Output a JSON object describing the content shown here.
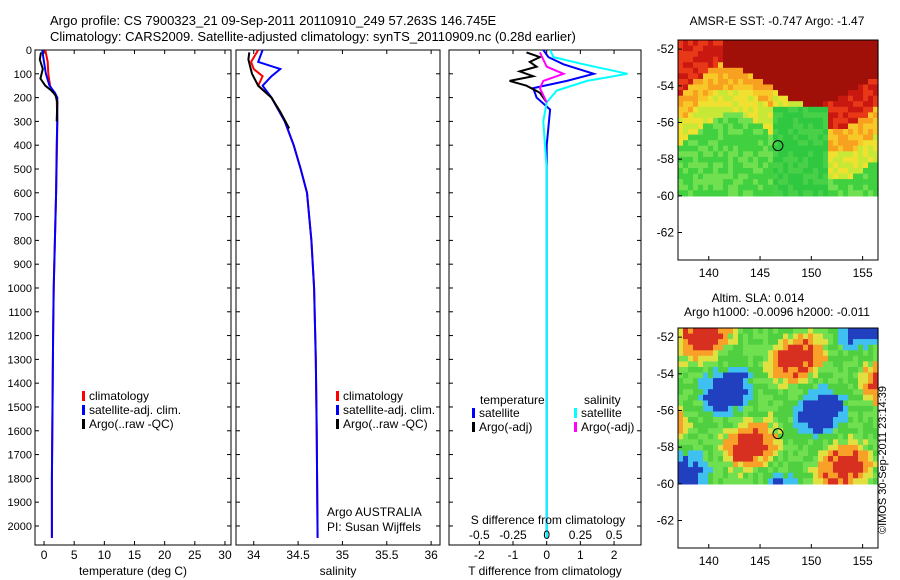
{
  "header": {
    "line1": "Argo profile: CS 7900323_21 09-Sep-2011 20110910_249 57.263S 146.745E",
    "line2": "Climatology: CARS2009. Satellite-adjusted climatology: synTS_20110909.nc (0.28d earlier)"
  },
  "colors": {
    "climatology": "#ff0000",
    "satellite": "#0000ff",
    "argo": "#000000",
    "satellite_s": "#00ffff",
    "argo_s": "#ff00ff"
  },
  "chart_data": [
    {
      "type": "line",
      "id": "temperature",
      "xlabel": "temperature (deg C)",
      "ylabel": "",
      "xlim": [
        -1.5,
        31
      ],
      "ylim": [
        2080,
        0
      ],
      "xticks": [
        0,
        5,
        10,
        15,
        20,
        25,
        30
      ],
      "yticks": [
        0,
        100,
        200,
        300,
        400,
        500,
        600,
        700,
        800,
        900,
        1000,
        1100,
        1200,
        1300,
        1400,
        1500,
        1600,
        1700,
        1800,
        1900,
        2000
      ],
      "legend": [
        "climatology",
        "satellite-adj. clim.",
        "Argo(..raw -QC)"
      ],
      "series": [
        {
          "name": "climatology",
          "x": [
            0.2,
            0.6,
            0.7,
            1.0,
            1.6,
            2.1,
            2.2,
            2.15,
            2.0,
            1.8,
            1.6,
            1.5,
            1.4,
            1.3,
            1.3
          ],
          "depth": [
            0,
            50,
            100,
            150,
            180,
            200,
            300,
            400,
            600,
            800,
            1000,
            1200,
            1500,
            1800,
            2050
          ]
        },
        {
          "name": "satellite-adj. clim.",
          "x": [
            -0.3,
            0.0,
            0.3,
            0.9,
            1.8,
            2.2,
            2.2,
            2.1,
            2.0,
            1.8,
            1.6,
            1.5,
            1.4,
            1.3,
            1.3
          ],
          "depth": [
            0,
            50,
            100,
            150,
            180,
            200,
            300,
            400,
            600,
            800,
            1000,
            1200,
            1500,
            1800,
            2050
          ]
        },
        {
          "name": "Argo(..raw -QC)",
          "x": [
            -0.5,
            -0.7,
            -0.2,
            -0.6,
            0.2,
            1.2,
            1.9,
            2.2,
            2.1
          ],
          "depth": [
            10,
            40,
            80,
            120,
            150,
            170,
            190,
            220,
            300
          ]
        }
      ]
    },
    {
      "type": "line",
      "id": "salinity",
      "xlabel": "salinity",
      "xlim": [
        33.8,
        36.1
      ],
      "ylim": [
        2080,
        0
      ],
      "xticks": [
        34,
        34.5,
        35,
        35.5,
        36
      ],
      "legend": [
        "climatology",
        "satellite-adj. clim.",
        "Argo(..raw -QC)"
      ],
      "series": [
        {
          "name": "climatology",
          "x": [
            34.05,
            33.97,
            34.0,
            34.1,
            34.05,
            34.2,
            34.35,
            34.45,
            34.53,
            34.6,
            34.65,
            34.68,
            34.7,
            34.71,
            34.72
          ],
          "depth": [
            0,
            50,
            80,
            110,
            150,
            200,
            300,
            400,
            500,
            600,
            800,
            1000,
            1300,
            1600,
            2050
          ]
        },
        {
          "name": "satellite-adj. clim.",
          "x": [
            34.1,
            34.05,
            34.3,
            34.2,
            34.1,
            34.2,
            34.35,
            34.45,
            34.53,
            34.6,
            34.65,
            34.68,
            34.7,
            34.71,
            34.72
          ],
          "depth": [
            0,
            50,
            80,
            110,
            150,
            200,
            300,
            400,
            500,
            600,
            800,
            1000,
            1300,
            1600,
            2050
          ]
        },
        {
          "name": "Argo(..raw -QC)",
          "x": [
            33.95,
            33.94,
            33.96,
            33.98,
            34.05,
            34.2,
            34.3,
            34.4
          ],
          "depth": [
            10,
            40,
            70,
            100,
            150,
            200,
            260,
            330
          ]
        }
      ],
      "annotations": [
        "Argo AUSTRALIA",
        "PI: Susan Wijffels"
      ]
    },
    {
      "type": "line",
      "id": "difference",
      "xlabel": "T difference from climatology",
      "xlabel_top": "S difference from climatology",
      "xlim": [
        -2.9,
        2.8
      ],
      "ylim": [
        2080,
        0
      ],
      "xticks": [
        -2,
        -1,
        0,
        1,
        2
      ],
      "xticks_top": [
        "-0.5",
        "-0.25",
        "0",
        "0.25",
        "0.5"
      ],
      "legend": {
        "temperature": [
          "satellite",
          "Argo(-adj)"
        ],
        "salinity": [
          "satellite",
          "Argo(-adj)"
        ],
        "temperature_title": "temperature",
        "salinity_title": "salinity"
      },
      "series": [
        {
          "name": "T satellite",
          "x": [
            -0.1,
            0.05,
            0.5,
            1.4,
            0.6,
            -0.4,
            -0.3,
            0.1,
            0.0,
            0.0,
            0.0,
            0.0,
            0.0
          ],
          "depth": [
            0,
            30,
            60,
            100,
            130,
            160,
            200,
            250,
            400,
            700,
            1000,
            1500,
            2050
          ]
        },
        {
          "name": "T Argo(-adj)",
          "x": [
            -0.6,
            -0.2,
            -0.5,
            -0.3,
            -0.8,
            -0.4,
            -1.1,
            -0.6,
            -0.2,
            0.0
          ],
          "depth": [
            10,
            30,
            50,
            70,
            90,
            110,
            130,
            150,
            180,
            220
          ]
        },
        {
          "name": "S satellite",
          "x": [
            0.1,
            0.2,
            1.1,
            2.4,
            1.2,
            0.3,
            0.0,
            -0.1,
            0.0,
            0.0,
            0.0,
            0.0
          ],
          "depth": [
            0,
            30,
            60,
            100,
            130,
            170,
            220,
            300,
            500,
            900,
            1500,
            2050
          ]
        },
        {
          "name": "S Argo(-adj)",
          "x": [
            -0.2,
            -0.1,
            0.0,
            0.5,
            -0.1,
            -0.2,
            0.0
          ],
          "depth": [
            10,
            40,
            70,
            100,
            130,
            160,
            220
          ]
        }
      ]
    },
    {
      "type": "heatmap",
      "id": "sst-map",
      "title": "AMSR-E SST: -0.747  Argo: -1.47",
      "xlim": [
        137,
        156.5
      ],
      "ylim": [
        -63.5,
        -51.5
      ],
      "xticks": [
        140,
        145,
        150,
        155
      ],
      "yticks": [
        -52,
        -54,
        -56,
        -58,
        -60,
        -62
      ],
      "marker": {
        "lon": 146.745,
        "lat": -57.263
      }
    },
    {
      "type": "heatmap",
      "id": "sla-map",
      "title": "Altim. SLA: 0.014",
      "subtitle": "Argo h1000: -0.0096 h2000: -0.011",
      "xlim": [
        137,
        156.5
      ],
      "ylim": [
        -63.5,
        -51.5
      ],
      "xticks": [
        140,
        145,
        150,
        155
      ],
      "yticks": [
        -52,
        -54,
        -56,
        -58,
        -60,
        -62
      ],
      "marker": {
        "lon": 146.745,
        "lat": -57.263
      }
    }
  ],
  "stamp": "©IMOS 30-Sep-2011 23:14:39"
}
